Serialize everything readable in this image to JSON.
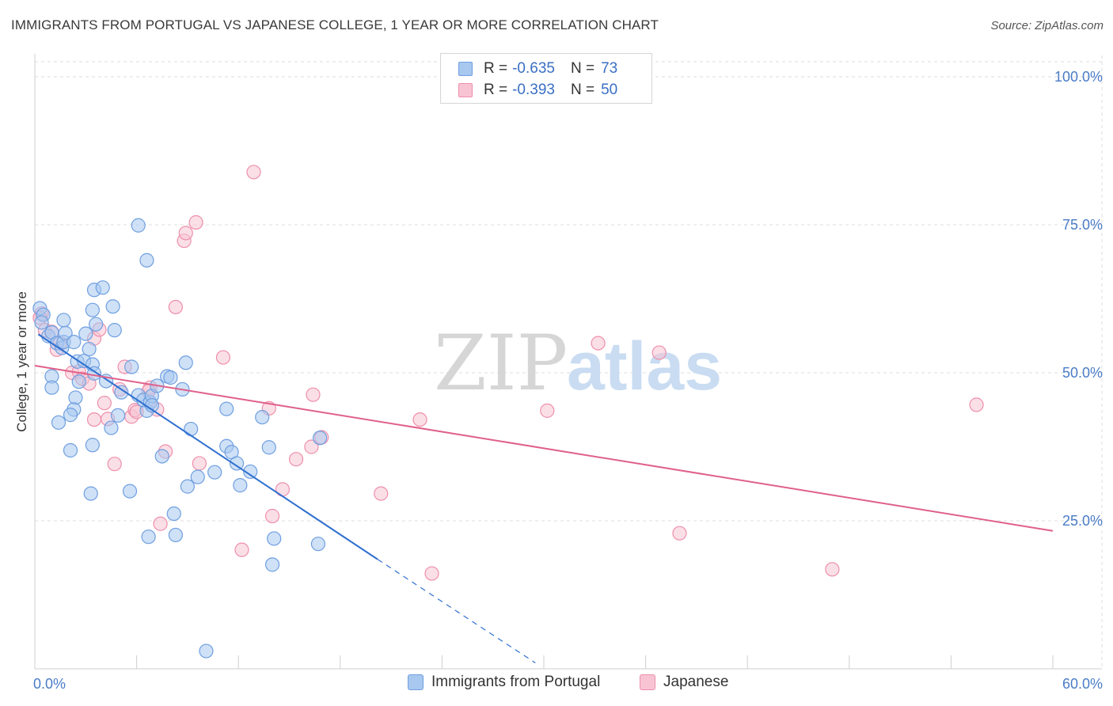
{
  "title": "IMMIGRANTS FROM PORTUGAL VS JAPANESE COLLEGE, 1 YEAR OR MORE CORRELATION CHART",
  "source": "Source: ZipAtlas.com",
  "watermark": {
    "zip": "ZIP",
    "atlas": "atlas"
  },
  "legend": {
    "rows": [
      {
        "r_label": "R =",
        "r_value": "-0.635",
        "n_label": "N =",
        "n_value": "73",
        "color": "#a8c8f0",
        "border": "#6f9fe0"
      },
      {
        "r_label": "R =",
        "r_value": "-0.393",
        "n_label": "N =",
        "n_value": "50",
        "color": "#f8c4d4",
        "border": "#ee8fab"
      }
    ]
  },
  "bottom_legend": [
    {
      "label": "Immigrants from Portugal",
      "color": "#a8c8f0",
      "border": "#6f9fe0"
    },
    {
      "label": "Japanese",
      "color": "#f8c4d4",
      "border": "#ee8fab"
    }
  ],
  "chart_data": {
    "type": "scatter",
    "title": "IMMIGRANTS FROM PORTUGAL VS JAPANESE COLLEGE, 1 YEAR OR MORE CORRELATION CHART",
    "xlabel": "",
    "ylabel": "College, 1 year or more",
    "xlim": [
      0,
      60
    ],
    "ylim": [
      0,
      100
    ],
    "x_tick_labels": [
      "0.0%",
      "60.0%"
    ],
    "y_ticks": [
      25,
      50,
      75,
      100
    ],
    "y_tick_labels": [
      "25.0%",
      "50.0%",
      "75.0%",
      "100.0%"
    ],
    "grid": true,
    "series": [
      {
        "name": "Immigrants from Portugal",
        "color": "#6f9fe0",
        "fill": "#a8c8f0",
        "line_color": "#2f6fd0",
        "trend": {
          "x_start": 0.2,
          "y_start": 56.5,
          "x_solid_end": 20.2,
          "y_solid_end": 18.5,
          "x_dash_end": 29.5,
          "y_dash_end": 1.0
        },
        "points": [
          [
            0.3,
            60.9
          ],
          [
            0.5,
            59.8
          ],
          [
            0.4,
            58.5
          ],
          [
            0.8,
            56.2
          ],
          [
            1.0,
            56.8
          ],
          [
            1.3,
            55.0
          ],
          [
            1.6,
            54.2
          ],
          [
            1.7,
            55.2
          ],
          [
            1.8,
            56.7
          ],
          [
            1.0,
            49.4
          ],
          [
            1.0,
            47.5
          ],
          [
            1.4,
            41.6
          ],
          [
            2.3,
            55.2
          ],
          [
            2.5,
            51.9
          ],
          [
            2.9,
            52.0
          ],
          [
            3.0,
            56.6
          ],
          [
            2.6,
            48.5
          ],
          [
            2.4,
            45.8
          ],
          [
            2.3,
            43.8
          ],
          [
            2.1,
            42.9
          ],
          [
            2.1,
            36.9
          ],
          [
            3.2,
            54.0
          ],
          [
            3.4,
            51.4
          ],
          [
            3.5,
            49.9
          ],
          [
            3.6,
            58.2
          ],
          [
            3.4,
            37.8
          ],
          [
            3.3,
            29.6
          ],
          [
            3.4,
            60.6
          ],
          [
            3.5,
            64.0
          ],
          [
            4.0,
            64.4
          ],
          [
            4.6,
            61.2
          ],
          [
            4.7,
            57.2
          ],
          [
            4.2,
            48.6
          ],
          [
            4.5,
            40.7
          ],
          [
            4.9,
            42.8
          ],
          [
            5.1,
            46.7
          ],
          [
            5.7,
            51.0
          ],
          [
            5.6,
            30.0
          ],
          [
            6.1,
            74.9
          ],
          [
            6.1,
            46.2
          ],
          [
            6.6,
            43.6
          ],
          [
            6.4,
            45.4
          ],
          [
            6.8,
            45.0
          ],
          [
            6.9,
            46.1
          ],
          [
            7.2,
            47.8
          ],
          [
            7.5,
            35.9
          ],
          [
            7.8,
            49.4
          ],
          [
            8.0,
            49.2
          ],
          [
            8.2,
            26.2
          ],
          [
            8.3,
            22.6
          ],
          [
            8.7,
            47.2
          ],
          [
            8.9,
            51.7
          ],
          [
            9.2,
            40.5
          ],
          [
            9.0,
            30.8
          ],
          [
            9.6,
            32.4
          ],
          [
            6.7,
            22.3
          ],
          [
            10.6,
            33.2
          ],
          [
            11.3,
            43.9
          ],
          [
            11.3,
            37.6
          ],
          [
            11.6,
            36.6
          ],
          [
            11.9,
            34.7
          ],
          [
            12.1,
            31.0
          ],
          [
            12.7,
            33.3
          ],
          [
            13.4,
            42.5
          ],
          [
            13.8,
            37.4
          ],
          [
            14.0,
            17.6
          ],
          [
            14.1,
            22.0
          ],
          [
            16.8,
            39.0
          ],
          [
            16.7,
            21.1
          ],
          [
            10.1,
            3.0
          ],
          [
            6.6,
            69.0
          ],
          [
            1.7,
            58.9
          ],
          [
            6.9,
            44.5
          ]
        ]
      },
      {
        "name": "Japanese",
        "color": "#ee8fab",
        "fill": "#f8c4d4",
        "line_color": "#e0608a",
        "trend": {
          "x_start": 0.0,
          "y_start": 51.2,
          "x_end": 60.0,
          "y_end": 23.3
        },
        "points": [
          [
            0.4,
            60.0
          ],
          [
            0.3,
            59.3
          ],
          [
            0.6,
            57.2
          ],
          [
            1.0,
            56.9
          ],
          [
            1.3,
            53.9
          ],
          [
            1.5,
            55.0
          ],
          [
            2.2,
            50.0
          ],
          [
            2.6,
            50.2
          ],
          [
            2.8,
            49.0
          ],
          [
            3.2,
            48.2
          ],
          [
            3.5,
            55.8
          ],
          [
            3.8,
            57.3
          ],
          [
            3.5,
            42.1
          ],
          [
            4.1,
            44.9
          ],
          [
            4.3,
            42.2
          ],
          [
            4.7,
            34.6
          ],
          [
            5.0,
            47.2
          ],
          [
            5.3,
            51.0
          ],
          [
            5.7,
            42.6
          ],
          [
            5.9,
            43.7
          ],
          [
            6.0,
            43.4
          ],
          [
            6.8,
            47.5
          ],
          [
            7.2,
            43.8
          ],
          [
            7.4,
            24.5
          ],
          [
            7.7,
            36.7
          ],
          [
            8.3,
            61.1
          ],
          [
            8.8,
            72.3
          ],
          [
            8.9,
            73.6
          ],
          [
            9.5,
            75.4
          ],
          [
            9.7,
            34.7
          ],
          [
            11.1,
            52.6
          ],
          [
            12.2,
            20.1
          ],
          [
            12.9,
            83.9
          ],
          [
            13.8,
            44.0
          ],
          [
            14.0,
            25.8
          ],
          [
            14.6,
            30.3
          ],
          [
            15.4,
            35.4
          ],
          [
            16.3,
            37.5
          ],
          [
            16.4,
            46.3
          ],
          [
            16.9,
            39.1
          ],
          [
            20.4,
            29.6
          ],
          [
            22.7,
            42.1
          ],
          [
            23.4,
            16.1
          ],
          [
            30.2,
            43.6
          ],
          [
            33.2,
            55.0
          ],
          [
            36.8,
            53.4
          ],
          [
            38.0,
            22.9
          ],
          [
            47.0,
            16.8
          ],
          [
            55.5,
            44.6
          ],
          [
            6.7,
            46.9
          ]
        ]
      }
    ]
  }
}
